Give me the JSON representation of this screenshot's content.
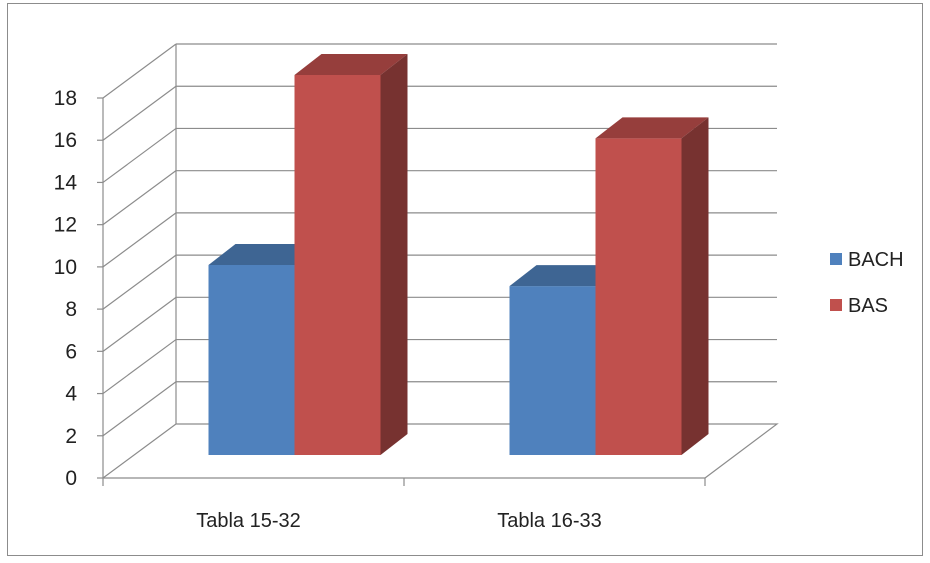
{
  "chart_data": {
    "type": "bar",
    "categories": [
      "Tabla 15-32",
      "Tabla 16-33"
    ],
    "series": [
      {
        "name": "BACH",
        "values": [
          9,
          8
        ],
        "color": "#4f81bd"
      },
      {
        "name": "BAS",
        "values": [
          18,
          15
        ],
        "color": "#c0504d"
      }
    ],
    "ylim": [
      0,
      18
    ],
    "yticks": [
      0,
      2,
      4,
      6,
      8,
      10,
      12,
      14,
      16,
      18
    ],
    "grid": true,
    "legend": "right",
    "three_d": true
  }
}
